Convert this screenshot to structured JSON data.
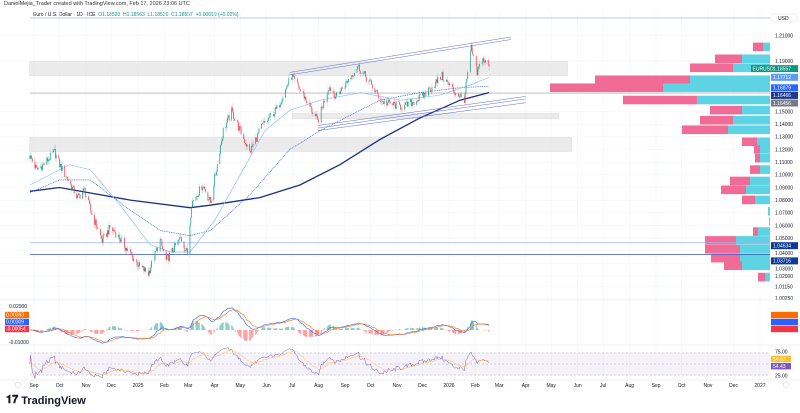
{
  "header": {
    "attribution": "DanielMejia_Trader created with TradingView.com, Feb 17, 2026 23:06 UTC"
  },
  "legend": {
    "symbol": "Euro / U.S. Dollar · 1D · ICE",
    "open": "O1.18520",
    "high": "H1.18563",
    "low": "L1.18520",
    "close": "C1.18557",
    "change": "+0.00019 (+0.02%)"
  },
  "currency_label": "USD",
  "footer": {
    "brand": "TradingView"
  },
  "colors": {
    "up": "#089981",
    "down": "#f23645",
    "ma_slow": "#1a2f8a",
    "ma_dotted": "#2962ff",
    "ma_light": "#90bff9",
    "vp_buy": "#5ed3e4",
    "vp_sell": "#f06b96"
  },
  "chart_data": {
    "type": "candlestick",
    "symbol": "EURUSD",
    "interval": "1D",
    "y_scale": "log",
    "price_ticks": [
      "1.21000",
      "1.19000",
      "1.15000",
      "1.14000",
      "1.13000",
      "1.12000",
      "1.11000",
      "1.10000",
      "1.09000",
      "1.08000",
      "1.07000",
      "1.06000",
      "1.05000",
      "1.04000",
      "1.03000",
      "1.02000",
      "1.01150",
      "1.00250"
    ],
    "time_ticks": [
      {
        "label": "Sep",
        "date": "2024-09-01"
      },
      {
        "label": "Oct",
        "date": "2024-10-01"
      },
      {
        "label": "Nov",
        "date": "2024-11-01"
      },
      {
        "label": "Dec",
        "date": "2024-12-01"
      },
      {
        "label": "2025",
        "date": "2025-01-01"
      },
      {
        "label": "Feb",
        "date": "2025-02-01"
      },
      {
        "label": "Mar",
        "date": "2025-03-01"
      },
      {
        "label": "Apr",
        "date": "2025-04-01"
      },
      {
        "label": "May",
        "date": "2025-05-01"
      },
      {
        "label": "Jun",
        "date": "2025-06-01"
      },
      {
        "label": "Jul",
        "date": "2025-07-01"
      },
      {
        "label": "Aug",
        "date": "2025-08-01"
      },
      {
        "label": "Sep",
        "date": "2025-09-01"
      },
      {
        "label": "Oct",
        "date": "2025-10-01"
      },
      {
        "label": "Nov",
        "date": "2025-11-01"
      },
      {
        "label": "Dec",
        "date": "2025-12-01"
      },
      {
        "label": "2026",
        "date": "2026-01-01"
      },
      {
        "label": "Feb",
        "date": "2026-02-01"
      },
      {
        "label": "Mar",
        "date": "2026-03-01"
      },
      {
        "label": "Apr",
        "date": "2026-04-01"
      },
      {
        "label": "May",
        "date": "2026-05-01"
      },
      {
        "label": "Jun",
        "date": "2026-06-01"
      },
      {
        "label": "Jul",
        "date": "2026-07-01"
      },
      {
        "label": "Aug",
        "date": "2026-08-01"
      },
      {
        "label": "Sep",
        "date": "2026-09-01"
      },
      {
        "label": "Oct",
        "date": "2026-10-01"
      },
      {
        "label": "Nov",
        "date": "2026-11-01"
      },
      {
        "label": "Dec",
        "date": "2026-12-01"
      },
      {
        "label": "2027",
        "date": "2027-01-01"
      }
    ],
    "close_path": [
      [
        "2024-08-27",
        1.115
      ],
      [
        "2024-09-04",
        1.104
      ],
      [
        "2024-09-12",
        1.108
      ],
      [
        "2024-09-25",
        1.118
      ],
      [
        "2024-10-01",
        1.108
      ],
      [
        "2024-10-22",
        1.082
      ],
      [
        "2024-10-30",
        1.088
      ],
      [
        "2024-11-06",
        1.072
      ],
      [
        "2024-11-20",
        1.048
      ],
      [
        "2024-11-29",
        1.058
      ],
      [
        "2024-12-05",
        1.055
      ],
      [
        "2024-12-20",
        1.04
      ],
      [
        "2025-01-02",
        1.028
      ],
      [
        "2025-01-13",
        1.022
      ],
      [
        "2025-01-27",
        1.048
      ],
      [
        "2025-02-03",
        1.032
      ],
      [
        "2025-02-20",
        1.05
      ],
      [
        "2025-02-28",
        1.038
      ],
      [
        "2025-03-05",
        1.078
      ],
      [
        "2025-03-18",
        1.092
      ],
      [
        "2025-03-27",
        1.078
      ],
      [
        "2025-04-11",
        1.135
      ],
      [
        "2025-04-21",
        1.15
      ],
      [
        "2025-05-12",
        1.118
      ],
      [
        "2025-05-26",
        1.138
      ],
      [
        "2025-06-13",
        1.152
      ],
      [
        "2025-06-30",
        1.178
      ],
      [
        "2025-07-17",
        1.16
      ],
      [
        "2025-07-31",
        1.142
      ],
      [
        "2025-08-13",
        1.17
      ],
      [
        "2025-08-22",
        1.162
      ],
      [
        "2025-09-16",
        1.186
      ],
      [
        "2025-10-01",
        1.172
      ],
      [
        "2025-10-14",
        1.158
      ],
      [
        "2025-10-30",
        1.155
      ],
      [
        "2025-11-10",
        1.154
      ],
      [
        "2025-12-01",
        1.162
      ],
      [
        "2025-12-24",
        1.178
      ],
      [
        "2026-01-08",
        1.165
      ],
      [
        "2026-01-19",
        1.16
      ],
      [
        "2026-01-27",
        1.2
      ],
      [
        "2026-02-03",
        1.18
      ],
      [
        "2026-02-09",
        1.192
      ],
      [
        "2026-02-17",
        1.18557
      ]
    ],
    "moving_averages": [
      {
        "style": "solid-thick",
        "color": "#1a2f8a",
        "points": [
          [
            "2024-08-27",
            1.087
          ],
          [
            "2024-10-01",
            1.09
          ],
          [
            "2024-12-23",
            1.08
          ],
          [
            "2025-03-03",
            1.074
          ],
          [
            "2025-03-27",
            1.076
          ],
          [
            "2025-05-24",
            1.082
          ],
          [
            "2025-07-10",
            1.092
          ],
          [
            "2025-08-26",
            1.108
          ],
          [
            "2025-10-12",
            1.128
          ],
          [
            "2025-11-28",
            1.145
          ],
          [
            "2026-01-14",
            1.159
          ],
          [
            "2026-02-17",
            1.165
          ]
        ]
      },
      {
        "style": "dotted",
        "color": "#2962ff",
        "points": [
          [
            "2024-08-27",
            1.086
          ],
          [
            "2024-10-01",
            1.096
          ],
          [
            "2024-11-06",
            1.096
          ],
          [
            "2024-12-23",
            1.072
          ],
          [
            "2025-01-27",
            1.056
          ],
          [
            "2025-03-03",
            1.052
          ],
          [
            "2025-03-27",
            1.056
          ],
          [
            "2025-05-12",
            1.084
          ],
          [
            "2025-06-28",
            1.12
          ],
          [
            "2025-08-03",
            1.135
          ],
          [
            "2025-09-07",
            1.147
          ],
          [
            "2025-10-12",
            1.159
          ],
          [
            "2025-11-28",
            1.165
          ],
          [
            "2026-01-14",
            1.169
          ],
          [
            "2026-02-17",
            1.17
          ]
        ]
      },
      {
        "style": "solid-thin",
        "color": "#90bff9",
        "points": [
          [
            "2024-08-27",
            1.092
          ],
          [
            "2024-10-13",
            1.108
          ],
          [
            "2024-11-06",
            1.104
          ],
          [
            "2024-12-11",
            1.076
          ],
          [
            "2025-01-15",
            1.045
          ],
          [
            "2025-02-08",
            1.039
          ],
          [
            "2025-03-03",
            1.039
          ],
          [
            "2025-04-01",
            1.064
          ],
          [
            "2025-05-01",
            1.1
          ],
          [
            "2025-05-30",
            1.135
          ],
          [
            "2025-06-28",
            1.151
          ],
          [
            "2025-08-03",
            1.159
          ],
          [
            "2025-09-19",
            1.165
          ],
          [
            "2025-11-05",
            1.159
          ],
          [
            "2025-12-21",
            1.163
          ],
          [
            "2026-01-26",
            1.171
          ],
          [
            "2026-02-17",
            1.177
          ]
        ]
      }
    ],
    "horizontal_lines": [
      {
        "price": 1.16466,
        "color": "#9598a1"
      },
      {
        "price": 1.04634,
        "color": "#9fb5f0"
      },
      {
        "price": 1.03716,
        "color": "#3559c7"
      }
    ],
    "zones": [
      {
        "from": 1.1785,
        "to": 1.1895,
        "start": "2024-08-27",
        "end": "2026-05-20"
      },
      {
        "from": 1.1445,
        "to": 1.1485,
        "start": "2025-07-01",
        "end": "2026-05-10"
      },
      {
        "from": 1.1185,
        "to": 1.1295,
        "start": "2024-08-27",
        "end": "2026-05-25"
      }
    ],
    "trendlines": [
      {
        "p1": [
          "2025-06-28",
          1.181
        ],
        "p2": [
          "2026-03-15",
          1.209
        ]
      },
      {
        "p1": [
          "2025-06-28",
          1.179
        ],
        "p2": [
          "2026-03-15",
          1.207
        ]
      },
      {
        "p1": [
          "2025-07-31",
          1.139
        ],
        "p2": [
          "2026-04-01",
          1.162
        ]
      },
      {
        "p1": [
          "2025-07-31",
          1.137
        ],
        "p2": [
          "2026-04-01",
          1.16
        ]
      },
      {
        "p1": [
          "2025-07-31",
          1.135
        ],
        "p2": [
          "2026-04-01",
          1.157
        ]
      }
    ],
    "volume_profile": [
      [
        1.201,
        10,
        7
      ],
      [
        1.1916,
        27,
        28
      ],
      [
        1.1845,
        43,
        37
      ],
      [
        1.175,
        95,
        80
      ],
      [
        1.1687,
        113,
        107
      ],
      [
        1.159,
        74,
        73
      ],
      [
        1.151,
        32,
        28
      ],
      [
        1.143,
        33,
        37
      ],
      [
        1.1355,
        46,
        42
      ],
      [
        1.126,
        15,
        13
      ],
      [
        1.12,
        6,
        10
      ],
      [
        1.113,
        5,
        10
      ],
      [
        1.104,
        10,
        10
      ],
      [
        1.095,
        20,
        20
      ],
      [
        1.088,
        25,
        24
      ],
      [
        1.08,
        13,
        15
      ],
      [
        1.071,
        0,
        2
      ],
      [
        1.063,
        0,
        1
      ],
      [
        1.055,
        5,
        12
      ],
      [
        1.048,
        31,
        34
      ],
      [
        1.041,
        35,
        30
      ],
      [
        1.034,
        29,
        30
      ],
      [
        1.028,
        18,
        28
      ],
      [
        1.019,
        7,
        5
      ]
    ],
    "price_tags": [
      {
        "text": "1.18557",
        "price": 1.18557,
        "color": "#089981",
        "prefix": "EURUSD"
      },
      {
        "text": "1.17712",
        "price": 1.17712,
        "color": "#5b9cf6"
      },
      {
        "text": "1.16879",
        "price": 1.16879,
        "color": "#2962ff"
      },
      {
        "text": "1.16466",
        "price": 1.16466,
        "color": "#1e3a8a"
      },
      {
        "text": "1.16456",
        "price": 1.1588,
        "color": "#787b86"
      },
      {
        "text": "1.04634",
        "price": 1.04634,
        "color": "#0d3a94"
      },
      {
        "text": "1.03716",
        "price": 1.03716,
        "color": "#0d3a94"
      }
    ],
    "macd": {
      "ticks": [
        "0.02000",
        "-0.01000"
      ],
      "tags": [
        {
          "text": "0.00363",
          "color": "#ff6d00"
        },
        {
          "text": "0.00309",
          "color": "#2962ff"
        },
        {
          "text": "-0.00054",
          "color": "#f23645"
        }
      ]
    },
    "rsi": {
      "ticks": [
        "75.00",
        "25.00"
      ],
      "tags": [
        {
          "text": "54.67",
          "color": "#fbc02d"
        },
        {
          "text": "54.43",
          "color": "#7e57c2"
        }
      ]
    }
  }
}
